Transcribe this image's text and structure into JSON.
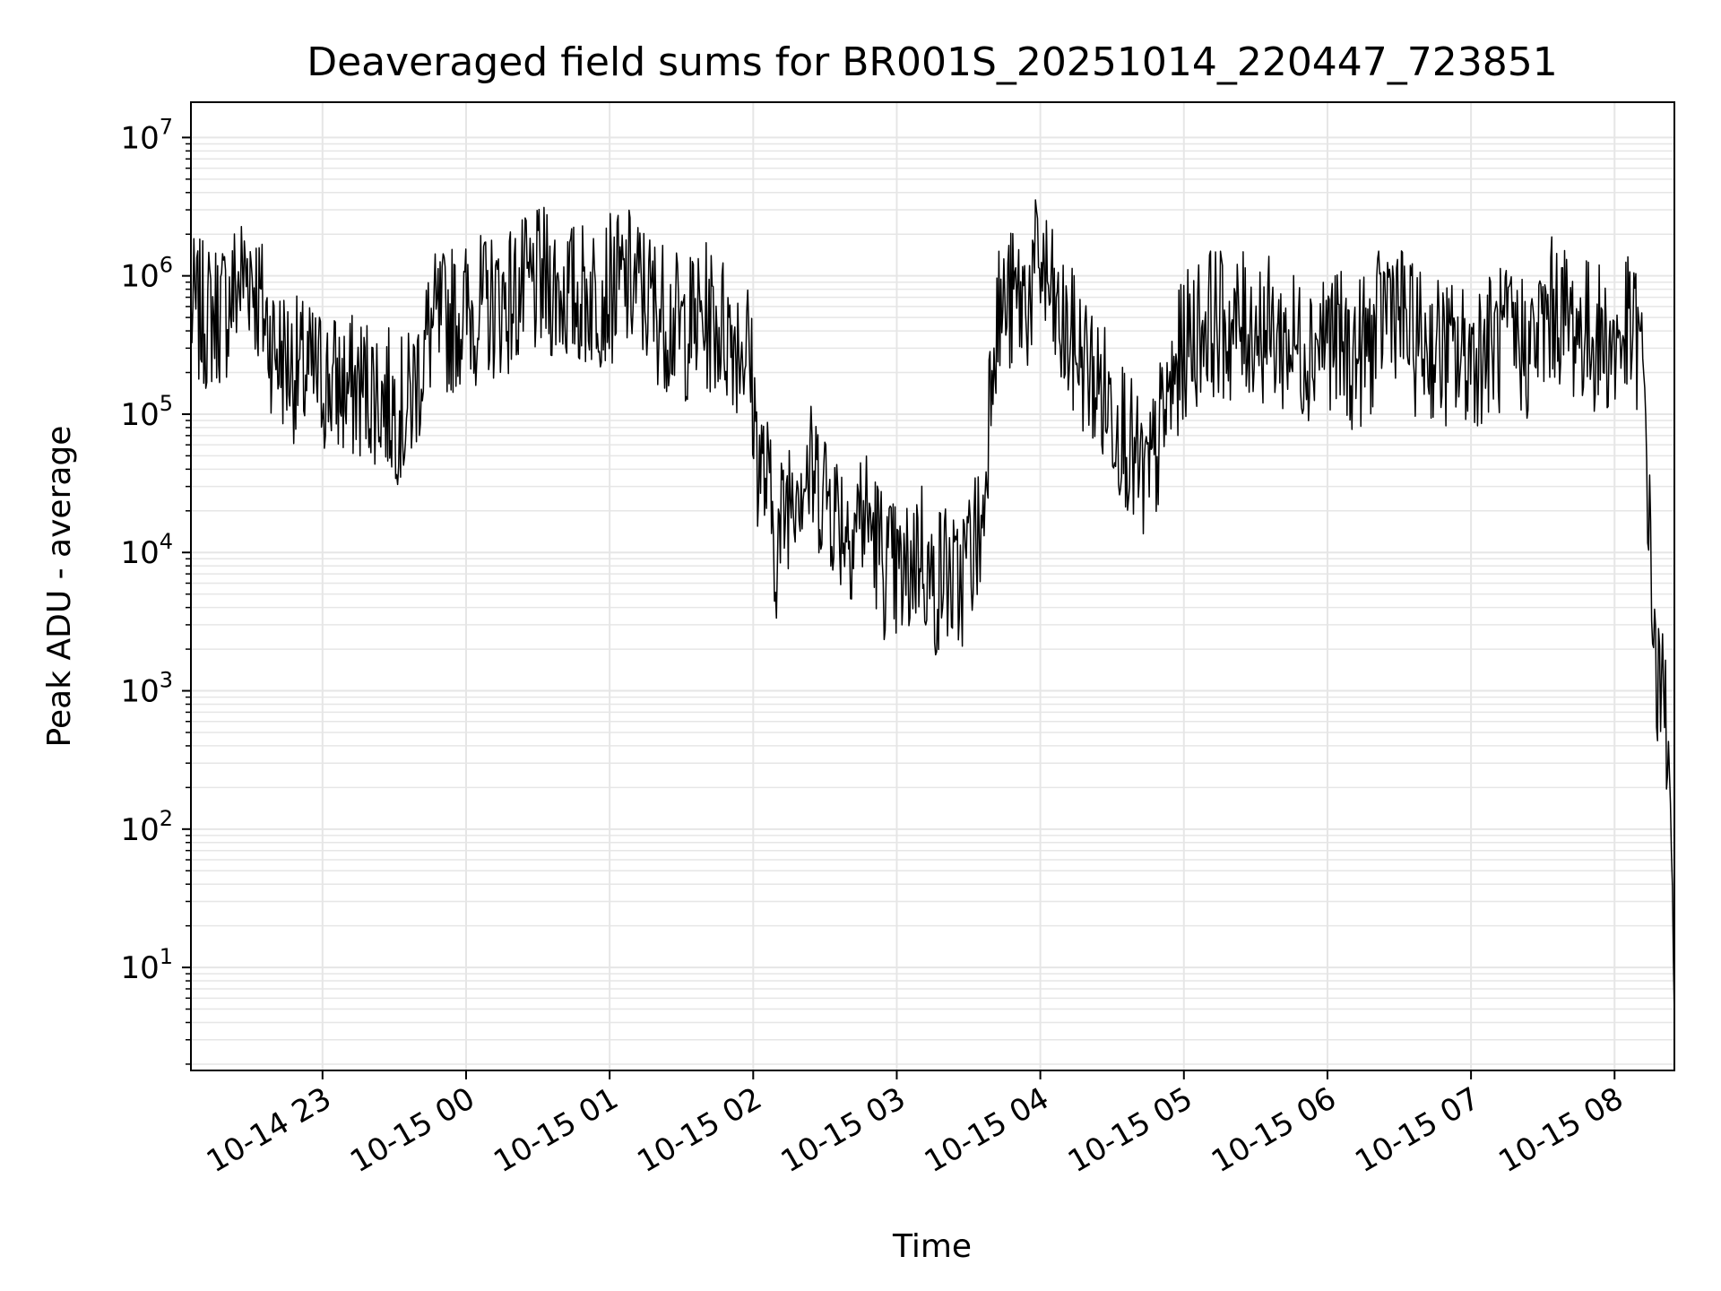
{
  "chart_data": {
    "type": "line",
    "title": "Deaveraged field sums for BR001S_20251014_220447_723851",
    "xlabel": "Time",
    "ylabel": "Peak ADU - average",
    "yscale": "log",
    "ylim": [
      1.8,
      18000000
    ],
    "xlim": [
      "2025-10-14 22:05",
      "2025-10-15 08:25"
    ],
    "grid": true,
    "line_color": "#000000",
    "grid_color": "#e6e6e6",
    "x_ticks": [
      {
        "value": "2025-10-14 23:00",
        "label": "10-14 23"
      },
      {
        "value": "2025-10-15 00:00",
        "label": "10-15 00"
      },
      {
        "value": "2025-10-15 01:00",
        "label": "10-15 01"
      },
      {
        "value": "2025-10-15 02:00",
        "label": "10-15 02"
      },
      {
        "value": "2025-10-15 03:00",
        "label": "10-15 03"
      },
      {
        "value": "2025-10-15 04:00",
        "label": "10-15 04"
      },
      {
        "value": "2025-10-15 05:00",
        "label": "10-15 05"
      },
      {
        "value": "2025-10-15 06:00",
        "label": "10-15 06"
      },
      {
        "value": "2025-10-15 07:00",
        "label": "10-15 07"
      },
      {
        "value": "2025-10-15 08:00",
        "label": "10-15 08"
      }
    ],
    "y_ticks": [
      {
        "value": 10,
        "base": "10",
        "exp": "1"
      },
      {
        "value": 100,
        "base": "10",
        "exp": "2"
      },
      {
        "value": 1000,
        "base": "10",
        "exp": "3"
      },
      {
        "value": 10000,
        "base": "10",
        "exp": "4"
      },
      {
        "value": 100000,
        "base": "10",
        "exp": "5"
      },
      {
        "value": 1000000,
        "base": "10",
        "exp": "6"
      },
      {
        "value": 10000000,
        "base": "10",
        "exp": "7"
      }
    ],
    "series": [
      {
        "x": [
          "2025-10-14 22:05",
          "2025-10-14 22:12",
          "2025-10-14 22:20",
          "2025-10-14 22:25",
          "2025-10-14 22:30",
          "2025-10-14 22:33",
          "2025-10-14 22:40",
          "2025-10-14 22:50",
          "2025-10-14 23:00",
          "2025-10-14 23:10",
          "2025-10-14 23:20",
          "2025-10-14 23:28",
          "2025-10-14 23:35",
          "2025-10-14 23:45",
          "2025-10-14 23:55",
          "2025-10-15 00:10",
          "2025-10-15 00:20",
          "2025-10-15 00:33",
          "2025-10-15 00:45",
          "2025-10-15 01:00",
          "2025-10-15 01:10",
          "2025-10-15 01:15",
          "2025-10-15 01:30",
          "2025-10-15 01:40",
          "2025-10-15 01:50",
          "2025-10-15 01:58",
          "2025-10-15 02:02",
          "2025-10-15 02:06",
          "2025-10-15 02:10",
          "2025-10-15 02:14",
          "2025-10-15 02:18",
          "2025-10-15 02:25",
          "2025-10-15 02:30",
          "2025-10-15 02:35",
          "2025-10-15 02:40",
          "2025-10-15 02:45",
          "2025-10-15 02:50",
          "2025-10-15 02:55",
          "2025-10-15 03:03",
          "2025-10-15 03:10",
          "2025-10-15 03:15",
          "2025-10-15 03:20",
          "2025-10-15 03:25",
          "2025-10-15 03:30",
          "2025-10-15 03:36",
          "2025-10-15 03:40",
          "2025-10-15 03:45",
          "2025-10-15 03:55",
          "2025-10-15 04:00",
          "2025-10-15 04:08",
          "2025-10-15 04:15",
          "2025-10-15 04:25",
          "2025-10-15 04:35",
          "2025-10-15 04:40",
          "2025-10-15 04:45",
          "2025-10-15 04:52",
          "2025-10-15 05:00",
          "2025-10-15 05:10",
          "2025-10-15 05:20",
          "2025-10-15 05:30",
          "2025-10-15 05:40",
          "2025-10-15 05:50",
          "2025-10-15 06:00",
          "2025-10-15 06:10",
          "2025-10-15 06:20",
          "2025-10-15 06:26",
          "2025-10-15 06:35",
          "2025-10-15 06:45",
          "2025-10-15 06:55",
          "2025-10-15 07:05",
          "2025-10-15 07:15",
          "2025-10-15 07:25",
          "2025-10-15 07:35",
          "2025-10-15 07:45",
          "2025-10-15 07:55",
          "2025-10-15 08:00",
          "2025-10-15 08:05",
          "2025-10-15 08:10",
          "2025-10-15 08:13",
          "2025-10-15 08:15",
          "2025-10-15 08:18",
          "2025-10-15 08:21",
          "2025-10-15 08:23",
          "2025-10-15 08:24",
          "2025-10-15 08:25"
        ],
        "y": [
          550000,
          500000,
          600000,
          900000,
          1200000,
          700000,
          300000,
          200000,
          180000,
          150000,
          160000,
          120000,
          100000,
          400000,
          500000,
          600000,
          700000,
          900000,
          700000,
          800000,
          900000,
          700000,
          400000,
          500000,
          400000,
          300000,
          50000,
          30000,
          10000,
          25000,
          40000,
          35000,
          30000,
          20000,
          15000,
          20000,
          15000,
          8000,
          6000,
          12000,
          5000,
          8000,
          5000,
          10000,
          15000,
          400000,
          600000,
          700000,
          1300000,
          400000,
          300000,
          150000,
          80000,
          40000,
          30000,
          100000,
          300000,
          500000,
          400000,
          450000,
          350000,
          300000,
          400000,
          250000,
          350000,
          800000,
          350000,
          300000,
          250000,
          300000,
          350000,
          300000,
          600000,
          400000,
          350000,
          300000,
          400000,
          350000,
          100000,
          8000,
          1000,
          800,
          300,
          50,
          4
        ]
      }
    ]
  }
}
